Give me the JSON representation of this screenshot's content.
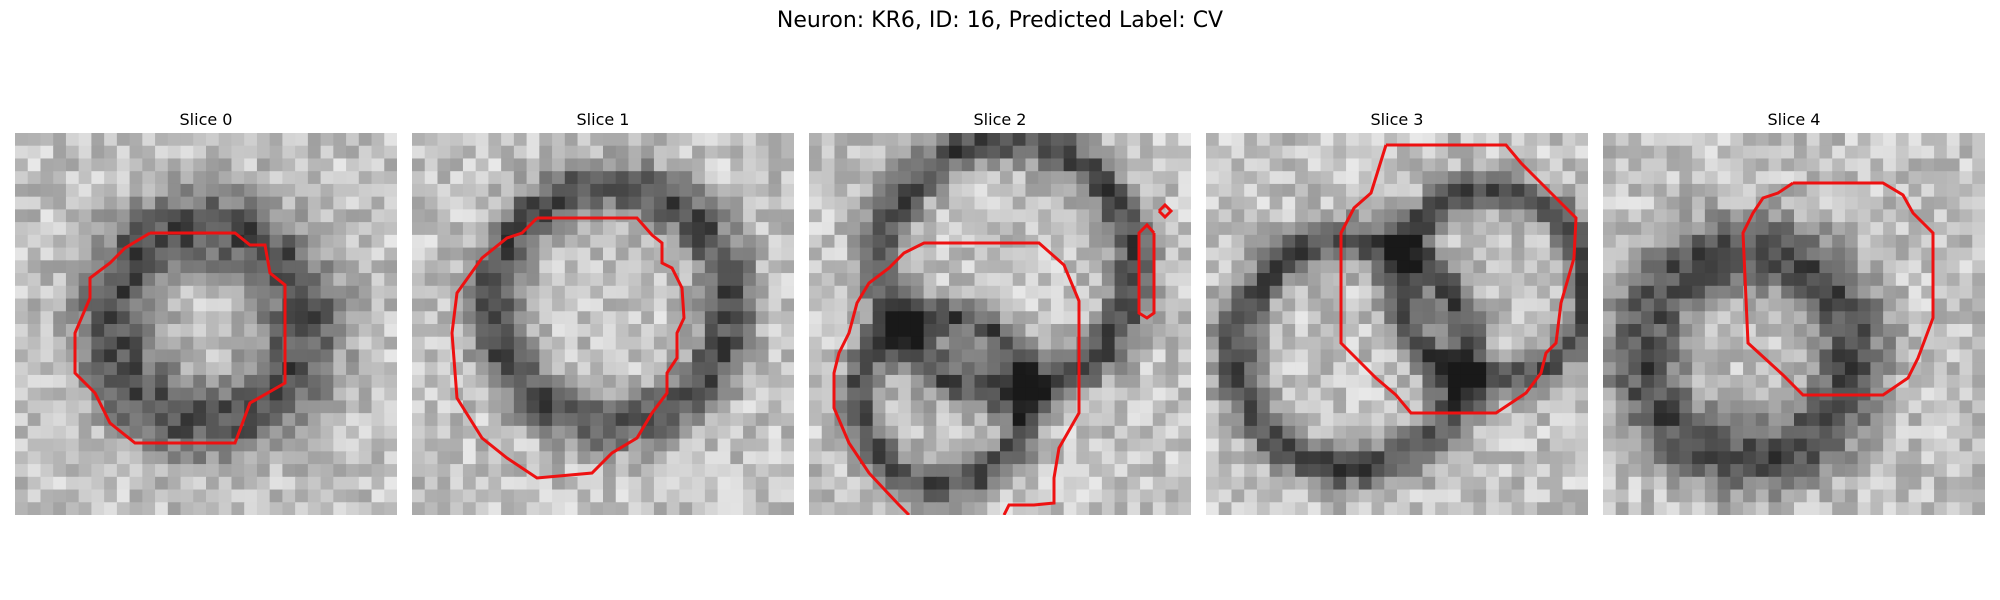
{
  "figure": {
    "title": "Neuron: KR6, ID: 16, Predicted Label: CV"
  },
  "colors": {
    "contour": "#ee1111",
    "background": "#ffffff"
  },
  "panels": [
    {
      "title": "Slice 0",
      "seed": 11
    },
    {
      "title": "Slice 1",
      "seed": 23
    },
    {
      "title": "Slice 2",
      "seed": 37
    },
    {
      "title": "Slice 3",
      "seed": 41
    },
    {
      "title": "Slice 4",
      "seed": 59
    }
  ]
}
